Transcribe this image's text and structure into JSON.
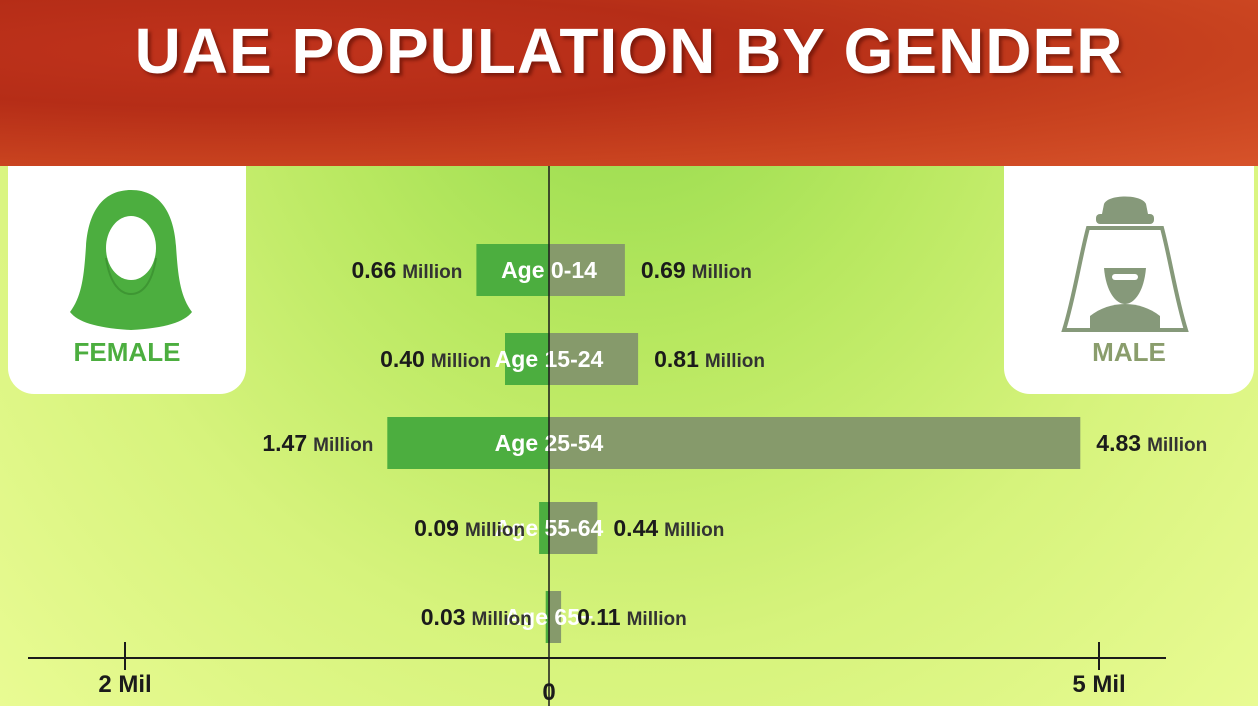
{
  "title": "UAE POPULATION BY GENDER",
  "female_label": "FEMALE",
  "male_label": "MALE",
  "colors": {
    "female": "#4cae3f",
    "male": "#869a6b",
    "header": "#c0331c"
  },
  "chart_data": {
    "type": "bar",
    "orientation": "horizontal-butterfly",
    "categories": [
      "Age 0-14",
      "Age 15-24",
      "Age 25-54",
      "Age 55-64",
      "Age 65+"
    ],
    "series": [
      {
        "name": "FEMALE",
        "values": [
          0.66,
          0.4,
          1.47,
          0.09,
          0.03
        ],
        "unit_label": "Million"
      },
      {
        "name": "MALE",
        "values": [
          0.69,
          0.81,
          4.83,
          0.44,
          0.11
        ],
        "unit_label": "Million"
      }
    ],
    "value_labels": {
      "female": [
        "0.66",
        "0.40",
        "1.47",
        "0.09",
        "0.03"
      ],
      "male": [
        "0.69",
        "0.81",
        "4.83",
        "0.44",
        "0.11"
      ]
    },
    "ticks": [
      {
        "value": -2,
        "label": "2 Mil"
      },
      {
        "value": 0,
        "label": "0"
      },
      {
        "value": 5,
        "label": "5 Mil"
      }
    ],
    "xlim": [
      -2,
      5
    ],
    "unit": "Million"
  }
}
